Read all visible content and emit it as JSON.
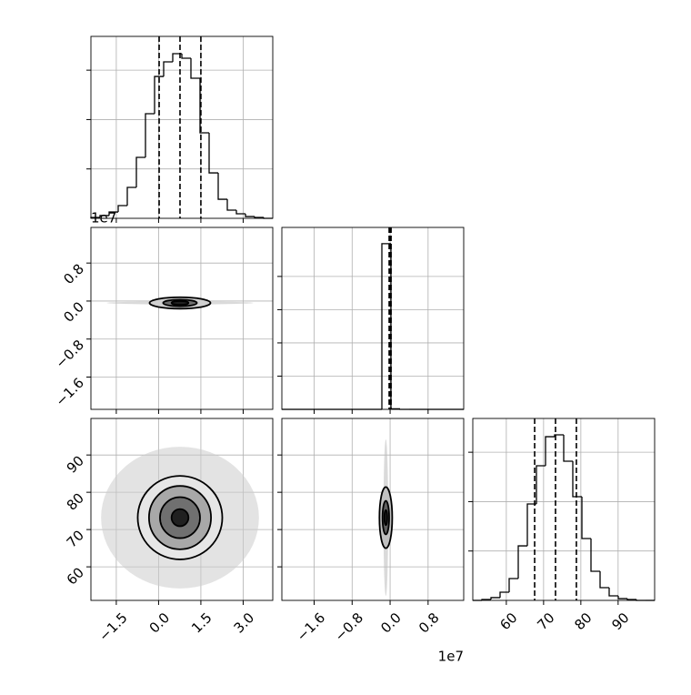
{
  "axes": [
    {
      "lim": [
        -2.4,
        4.05
      ],
      "ticks": [
        {
          "value": -1.5,
          "label": "−1.5"
        },
        {
          "value": 0,
          "label": "0.0"
        },
        1.5,
        {
          "value": 3,
          "label": "3.0"
        }
      ]
    },
    {
      "lim": [
        -2.28,
        1.55
      ],
      "ticks": [
        {
          "value": -1.6,
          "label": "−1.6"
        },
        {
          "value": -0.8,
          "label": "−0.8"
        },
        {
          "value": 0,
          "label": "0.0"
        },
        0.8
      ],
      "offset": "1e7"
    },
    {
      "lim": [
        51,
        99.8
      ],
      "ticks": [
        60,
        70,
        80,
        90
      ]
    }
  ],
  "chart_data": [
    {
      "type": "histogram",
      "param": 0,
      "color": "#000000",
      "bins": [
        -2.4,
        -2.0775,
        -1.755,
        -1.4325,
        -1.11,
        -0.7875,
        -0.465,
        -0.1425,
        0.18,
        0.5025,
        0.825,
        1.1475,
        1.47,
        1.7925,
        2.115,
        2.4375,
        2.76,
        3.0825,
        3.405,
        3.7275,
        4.05
      ],
      "counts": [
        9,
        28,
        64,
        129,
        313,
        617,
        1059,
        1436,
        1584,
        1667,
        1621,
        1418,
        866,
        460,
        193,
        83,
        46,
        18,
        9,
        0
      ],
      "ylim": [
        0,
        1842
      ],
      "yticks": [
        500,
        1000,
        1500
      ],
      "quantiles": [
        0.02,
        0.76,
        1.5
      ]
    },
    {
      "type": "contour",
      "x_param": 0,
      "y_param": 1,
      "line_color": "#000000",
      "cloud": {
        "cx": 0.76,
        "cy": -0.04,
        "rx": 2.6,
        "ry": 0.03,
        "color": "#bbbbbb"
      },
      "contours": [
        {
          "cx": 0.76,
          "cy": -0.04,
          "rx": 1.08,
          "ry": 0.12,
          "fill": "#d0d0d0"
        },
        {
          "cx": 0.76,
          "cy": -0.04,
          "rx": 0.6,
          "ry": 0.07,
          "fill": "#707070"
        },
        {
          "cx": 0.76,
          "cy": -0.04,
          "rx": 0.3,
          "ry": 0.04,
          "fill": "#202020"
        }
      ]
    },
    {
      "type": "histogram",
      "param": 1,
      "color": "#000000",
      "bins": [
        -2.28,
        -2.0885,
        -1.897,
        -1.7055,
        -1.514,
        -1.3225,
        -1.131,
        -0.9395,
        -0.748,
        -0.5565,
        -0.365,
        -0.1735,
        0.018,
        0.2095,
        0.401,
        0.5925,
        0.784,
        0.9755,
        1.167,
        1.3585,
        1.55
      ],
      "counts": [
        0,
        0,
        0,
        0,
        0,
        0,
        0,
        0,
        0,
        0,
        0,
        9970,
        30,
        0,
        0,
        0,
        0,
        0,
        0,
        0
      ],
      "ylim": [
        0,
        10950
      ],
      "yticks": [
        2000,
        4000,
        6000,
        8000
      ],
      "quantiles": [
        -0.02,
        0.0,
        0.02
      ]
    },
    {
      "type": "contour",
      "x_param": 0,
      "y_param": 2,
      "line_color": "#000000",
      "cloud": {
        "cx": 0.76,
        "cy": 73.2,
        "rx": 2.8,
        "ry": 19,
        "color": "#cccccc"
      },
      "contours": [
        {
          "cx": 0.76,
          "cy": 73.2,
          "rx": 1.5,
          "ry": 11.2,
          "fill": "#e6e6e6"
        },
        {
          "cx": 0.76,
          "cy": 73.2,
          "rx": 1.1,
          "ry": 8.5,
          "fill": "#a8a8a8"
        },
        {
          "cx": 0.76,
          "cy": 73.2,
          "rx": 0.71,
          "ry": 5.5,
          "fill": "#707070"
        },
        {
          "cx": 0.76,
          "cy": 73.2,
          "rx": 0.3,
          "ry": 2.3,
          "fill": "#202020"
        }
      ]
    },
    {
      "type": "contour",
      "x_param": 1,
      "y_param": 2,
      "line_color": "#000000",
      "cloud": {
        "cx": -0.09,
        "cy": 73.2,
        "rx": 0.05,
        "ry": 21,
        "color": "#bbbbbb"
      },
      "contours": [
        {
          "cx": -0.09,
          "cy": 73.2,
          "rx": 0.135,
          "ry": 8.2,
          "fill": "#c0c0c0"
        },
        {
          "cx": -0.09,
          "cy": 73.2,
          "rx": 0.07,
          "ry": 4.5,
          "fill": "#606060"
        },
        {
          "cx": -0.09,
          "cy": 73.2,
          "rx": 0.03,
          "ry": 2,
          "fill": "#202020"
        }
      ]
    },
    {
      "type": "histogram",
      "param": 2,
      "color": "#000000",
      "bins": [
        51,
        53.44,
        55.88,
        58.32,
        60.76,
        63.2,
        65.64,
        68.08,
        70.52,
        72.96,
        75.4,
        77.84,
        80.28,
        82.72,
        85.16,
        87.6,
        90.04,
        92.48,
        94.92,
        97.36,
        99.8
      ],
      "counts": [
        0,
        9,
        28,
        83,
        221,
        552,
        976,
        1363,
        1657,
        1676,
        1409,
        1050,
        626,
        295,
        129,
        46,
        18,
        9,
        0,
        0
      ],
      "ylim": [
        0,
        1842
      ],
      "yticks": [
        500,
        1000,
        1500
      ],
      "quantiles": [
        67.6,
        73.2,
        78.8
      ]
    }
  ]
}
